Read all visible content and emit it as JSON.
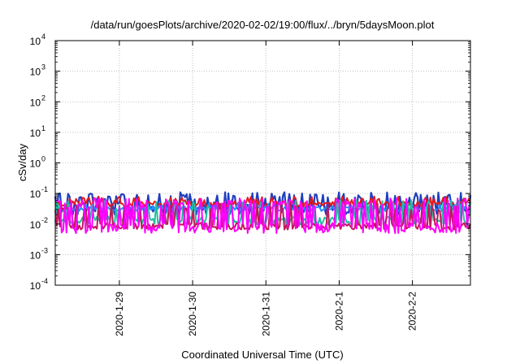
{
  "chart_data": {
    "type": "line",
    "title": "/data/run/goesPlots/archive/2020-02-02/19:00/flux/../bryn/5daysMoon.plot",
    "xlabel": "Coordinated Universal Time (UTC)",
    "ylabel": "cSv/day",
    "y_scale": "log",
    "ylim": [
      0.0001,
      10000
    ],
    "y_ticks": [
      {
        "base": "10",
        "exp": "4",
        "value": 10000
      },
      {
        "base": "10",
        "exp": "3",
        "value": 1000
      },
      {
        "base": "10",
        "exp": "2",
        "value": 100
      },
      {
        "base": "10",
        "exp": "1",
        "value": 10
      },
      {
        "base": "10",
        "exp": "0",
        "value": 1
      },
      {
        "base": "10",
        "exp": "-1",
        "value": 0.1
      },
      {
        "base": "10",
        "exp": "-2",
        "value": 0.01
      },
      {
        "base": "10",
        "exp": "-3",
        "value": 0.001
      },
      {
        "base": "10",
        "exp": "-4",
        "value": 0.0001
      }
    ],
    "xlim": [
      "2020-01-28T03:00",
      "2020-02-02T19:00"
    ],
    "x_ticks": [
      {
        "label": "2020-1-29",
        "value": "2020-01-29T00:00"
      },
      {
        "label": "2020-1-30",
        "value": "2020-01-30T00:00"
      },
      {
        "label": "2020-1-31",
        "value": "2020-01-31T00:00"
      },
      {
        "label": "2020-2-1",
        "value": "2020-02-01T00:00"
      },
      {
        "label": "2020-2-2",
        "value": "2020-02-02T00:00"
      }
    ],
    "grid": true,
    "legend": "none",
    "series": [
      {
        "color": "#1f3fbf",
        "base": 0.032,
        "spread": 1.6,
        "spike_max": 0.11,
        "spike_rate": 0.35,
        "seed": 11
      },
      {
        "color": "#e41a1c",
        "base": 0.046,
        "spread": 1.25,
        "spike_max": 0.08,
        "spike_rate": 0.15,
        "seed": 23
      },
      {
        "color": "#1e90ff",
        "base": 0.032,
        "spread": 1.2,
        "spike_max": 0.05,
        "spike_rate": 0.12,
        "seed": 37
      },
      {
        "color": "#20c0a0",
        "base": 0.013,
        "spread": 1.35,
        "spike_max": 0.06,
        "spike_rate": 0.25,
        "seed": 41
      },
      {
        "color": "#c2185b",
        "base": 0.0085,
        "spread": 1.3,
        "spike_max": 0.05,
        "spike_rate": 0.2,
        "seed": 53
      },
      {
        "color": "#ff00ff",
        "base": 0.0075,
        "spread": 1.5,
        "spike_max": 0.07,
        "spike_rate": 0.45,
        "seed": 67
      }
    ]
  }
}
